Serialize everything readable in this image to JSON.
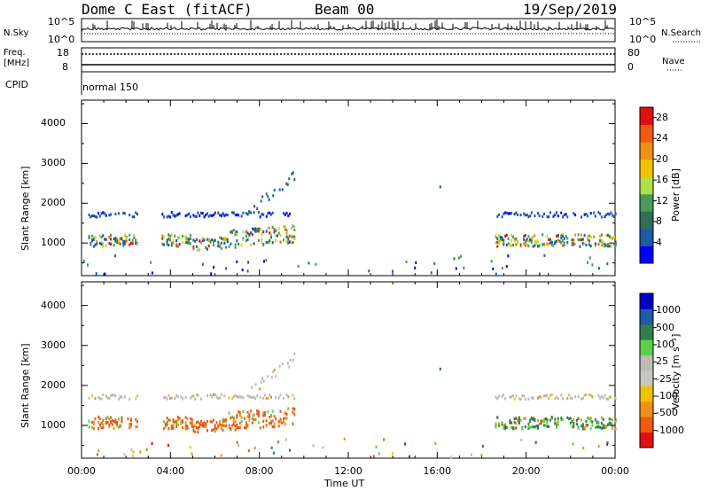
{
  "header": {
    "station": "Dome C East (fitACF)",
    "beam": "Beam 00",
    "date": "19/Sep/2019"
  },
  "labels": {
    "nsky": "N.Sky",
    "nsearch": "N.Search",
    "freq": "Freq.",
    "mhz": "[MHz]",
    "nave": "Nave",
    "cpid": "CPID",
    "cpid_value": "normal 150",
    "exp_ticks": [
      "10^5",
      "10^0"
    ],
    "freq_ticks": [
      "18",
      "8"
    ],
    "nave_ticks": [
      "80",
      "0"
    ]
  },
  "colors": {
    "power": [
      "#0000ff",
      "#1e5aa8",
      "#2f6f55",
      "#4b9a58",
      "#aee04a",
      "#f2c200",
      "#f09018",
      "#ee5a10",
      "#e01010"
    ],
    "velocity": [
      "#e01010",
      "#ee5a10",
      "#f09018",
      "#f2c200",
      "#c8c8c0",
      "#bcbcb4",
      "#5fcf4a",
      "#2f7f4a",
      "#1e5aa8",
      "#0000c8"
    ]
  },
  "chart_data": [
    {
      "type": "heatmap",
      "title": "",
      "xlabel": "",
      "ylabel": "Slant Range [km]",
      "xlim": [
        "00:00",
        "00:00"
      ],
      "ylim": [
        180,
        4590
      ],
      "xticks": [
        "00:00",
        "04:00",
        "08:00",
        "12:00",
        "16:00",
        "20:00",
        "00:00"
      ],
      "yticks": [
        1000,
        2000,
        3000,
        4000
      ],
      "colorbar": {
        "label": "Power [dB]",
        "ticks": [
          4,
          8,
          12,
          16,
          20,
          24,
          28
        ],
        "range": [
          0,
          30
        ]
      },
      "series": [
        {
          "x": [
            "00:30",
            "09:40",
            "18:45",
            "23:55"
          ],
          "y": [
            1750,
            1750,
            1720,
            1680
          ]
        },
        {
          "x": [
            "00:30",
            "09:40",
            "18:45",
            "23:55"
          ],
          "y": [
            1100,
            1000,
            1150,
            1050
          ]
        }
      ]
    },
    {
      "type": "heatmap",
      "title": "",
      "xlabel": "Time UT",
      "ylabel": "Slant Range [km]",
      "xlim": [
        "00:00",
        "00:00"
      ],
      "ylim": [
        180,
        4590
      ],
      "xticks": [
        "00:00",
        "04:00",
        "08:00",
        "12:00",
        "16:00",
        "20:00",
        "00:00"
      ],
      "yticks": [
        1000,
        2000,
        3000,
        4000
      ],
      "colorbar": {
        "label": "Velocity [m s⁻¹]",
        "ticks": [
          1000,
          500,
          100,
          25,
          -25,
          -100,
          -500,
          -1000
        ]
      }
    }
  ]
}
